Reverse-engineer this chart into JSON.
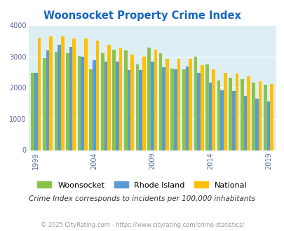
{
  "title": "Woonsocket Property Crime Index",
  "subtitle": "Crime Index corresponds to incidents per 100,000 inhabitants",
  "footer": "© 2025 CityRating.com - https://www.cityrating.com/crime-statistics/",
  "years": [
    1999,
    2000,
    2001,
    2002,
    2003,
    2004,
    2005,
    2006,
    2007,
    2008,
    2009,
    2010,
    2011,
    2012,
    2013,
    2014,
    2015,
    2016,
    2017,
    2018,
    2019
  ],
  "woonsocket": [
    2470,
    2950,
    3150,
    3120,
    3030,
    2600,
    3110,
    3220,
    3200,
    2740,
    3290,
    3100,
    2620,
    2590,
    3000,
    2750,
    2240,
    2330,
    2280,
    2160,
    2090
  ],
  "rhode_island": [
    2480,
    3190,
    3380,
    3300,
    2990,
    2890,
    2850,
    2850,
    2570,
    2570,
    2840,
    2660,
    2600,
    2690,
    2490,
    2160,
    1920,
    1900,
    1750,
    1650,
    1570
  ],
  "national": [
    3610,
    3640,
    3650,
    3590,
    3590,
    3520,
    3380,
    3270,
    3060,
    3000,
    3230,
    2940,
    2940,
    2930,
    2730,
    2590,
    2490,
    2450,
    2360,
    2210,
    2110
  ],
  "woonsocket_color": "#8bc34a",
  "rhode_island_color": "#5b9bd5",
  "national_color": "#ffc000",
  "plot_bg_color": "#ddeef5",
  "ylim": [
    0,
    4000
  ],
  "yticks": [
    0,
    1000,
    2000,
    3000,
    4000
  ],
  "title_color": "#1565c0",
  "subtitle_color": "#333333",
  "footer_color": "#999999",
  "bar_width": 0.28,
  "tick_label_color": "#5b6da0",
  "tick_years": [
    1999,
    2004,
    2009,
    2014,
    2019
  ]
}
